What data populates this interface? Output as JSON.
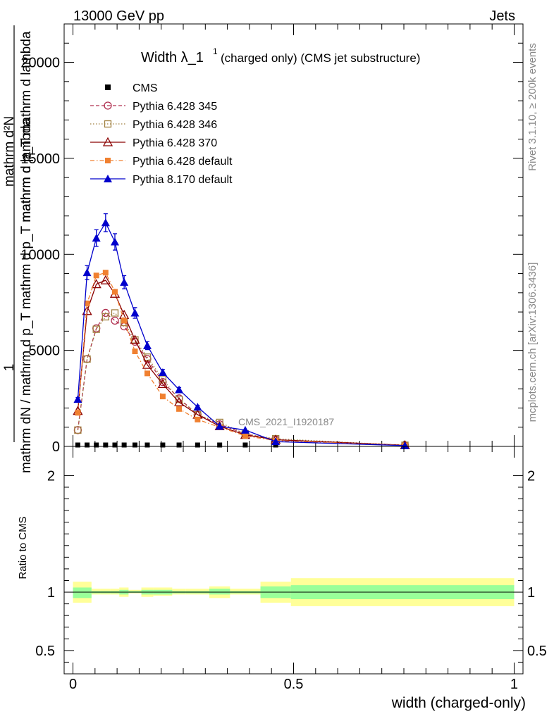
{
  "header": {
    "left": "13000 GeV pp",
    "right": "Jets"
  },
  "side_labels": {
    "rivet": "Rivet 3.1.10, ≥ 200k events",
    "mcplots": "mcplots.cern.ch [arXiv:1306.3436]"
  },
  "chart_data": [
    {
      "type": "line",
      "title": "Width λ_1¹ (charged only) (CMS jet substructure)",
      "title_main": "Width λ_1",
      "title_sup": "1",
      "title_rest": "(charged only) (CMS jet substructure)",
      "ylabel_lines": [
        "1",
        "mathrm dN / mathrm d p_T mathrm d p_T mathrm d lambda",
        "mathrm d²N"
      ],
      "ylabel_numerator": "mathrm d²N",
      "ylabel_numerator_sub": "mathrm d p_T mathrm d lambda",
      "ylabel_one": "1",
      "ylabel_denominator": "mathrm dN / mathrm d p_T mathrm d p_T mathrm d lambda",
      "watermark": "CMS_2021_I1920187",
      "xlim": [
        -0.02,
        1.02
      ],
      "ylim": [
        0,
        22000
      ],
      "yticks": [
        0,
        5000,
        10000,
        15000,
        20000
      ],
      "ytick_labels": [
        "0",
        "5000",
        "10000",
        "15000",
        "20000"
      ],
      "legend_position": "top-left",
      "series": [
        {
          "name": "CMS",
          "color": "#000000",
          "marker": "square",
          "line": "none",
          "x": [
            0.011,
            0.032,
            0.053,
            0.074,
            0.095,
            0.116,
            0.1405,
            0.1685,
            0.2035,
            0.2405,
            0.2825,
            0.3325,
            0.3905,
            0.4595,
            0.7525
          ],
          "y": [
            0,
            0,
            0,
            0,
            0,
            0,
            0,
            0,
            0,
            0,
            0,
            0,
            0,
            0,
            0
          ]
        },
        {
          "name": "Pythia 6.428 345",
          "color": "#b03050",
          "marker": "open-circle",
          "line": "dashed",
          "x": [
            0.011,
            0.032,
            0.053,
            0.074,
            0.095,
            0.116,
            0.1405,
            0.1685,
            0.2035,
            0.2405,
            0.2825,
            0.3325,
            0.3905,
            0.4595,
            0.7525
          ],
          "y": [
            850,
            4550,
            6150,
            6950,
            6550,
            6250,
            5450,
            4550,
            3350,
            2500,
            1650,
            1150,
            650,
            350,
            60
          ]
        },
        {
          "name": "Pythia 6.428 346",
          "color": "#a08040",
          "marker": "open-square",
          "line": "dotted",
          "x": [
            0.011,
            0.032,
            0.053,
            0.074,
            0.095,
            0.116,
            0.1405,
            0.1685,
            0.2035,
            0.2405,
            0.2825,
            0.3325,
            0.3905,
            0.4595,
            0.7525
          ],
          "y": [
            850,
            4550,
            6100,
            6750,
            6950,
            6450,
            5550,
            4650,
            3500,
            2450,
            1650,
            1250,
            650,
            400,
            60
          ]
        },
        {
          "name": "Pythia 6.428 370",
          "color": "#8b0000",
          "marker": "open-triangle",
          "line": "solid",
          "x": [
            0.011,
            0.032,
            0.053,
            0.074,
            0.095,
            0.116,
            0.1405,
            0.1685,
            0.2035,
            0.2405,
            0.2825,
            0.3325,
            0.3905,
            0.4595,
            0.7525
          ],
          "y": [
            1850,
            7050,
            8450,
            8650,
            7950,
            6850,
            5550,
            4250,
            3250,
            2300,
            1650,
            1050,
            600,
            350,
            60
          ]
        },
        {
          "name": "Pythia 6.428 default",
          "color": "#f08030",
          "marker": "filled-square",
          "line": "dashdot",
          "x": [
            0.011,
            0.032,
            0.053,
            0.074,
            0.095,
            0.116,
            0.1405,
            0.1685,
            0.2035,
            0.2405,
            0.2825,
            0.3325,
            0.3905,
            0.4595,
            0.7525
          ],
          "y": [
            1750,
            7450,
            8900,
            9050,
            8050,
            6550,
            4950,
            3800,
            2600,
            1950,
            1400,
            1000,
            550,
            300,
            50
          ]
        },
        {
          "name": "Pythia 8.170 default",
          "color": "#0000cc",
          "marker": "filled-triangle",
          "line": "solid",
          "x": [
            0.011,
            0.032,
            0.053,
            0.074,
            0.095,
            0.116,
            0.1405,
            0.1685,
            0.2035,
            0.2405,
            0.2825,
            0.3325,
            0.3905,
            0.4595,
            0.7525
          ],
          "y": [
            2450,
            9050,
            10850,
            11650,
            10650,
            8550,
            6950,
            5250,
            3850,
            2950,
            2050,
            1050,
            850,
            250,
            40
          ]
        }
      ]
    },
    {
      "type": "area",
      "ylabel": "Ratio to CMS",
      "xlabel": "width (charged-only)",
      "xlim": [
        -0.02,
        1.02
      ],
      "ylim": [
        0.3,
        2.25
      ],
      "xticks": [
        0,
        0.5,
        1
      ],
      "xtick_labels": [
        "0",
        "0.5",
        "1"
      ],
      "yticks": [
        0.5,
        1,
        2
      ],
      "ytick_labels": [
        "0.5",
        "1",
        "2"
      ],
      "reference_line": 1,
      "bins": [
        {
          "lo": 0.0,
          "hi": 0.042,
          "yellow": [
            0.91,
            1.09
          ],
          "green": [
            0.95,
            1.04
          ]
        },
        {
          "lo": 0.042,
          "hi": 0.063,
          "yellow": [
            0.98,
            1.03
          ],
          "green": [
            0.99,
            1.01
          ]
        },
        {
          "lo": 0.063,
          "hi": 0.084,
          "yellow": [
            0.98,
            1.03
          ],
          "green": [
            0.99,
            1.01
          ]
        },
        {
          "lo": 0.084,
          "hi": 0.105,
          "yellow": [
            0.98,
            1.03
          ],
          "green": [
            0.99,
            1.01
          ]
        },
        {
          "lo": 0.105,
          "hi": 0.126,
          "yellow": [
            0.96,
            1.04
          ],
          "green": [
            0.98,
            1.02
          ]
        },
        {
          "lo": 0.126,
          "hi": 0.155,
          "yellow": [
            0.99,
            1.02
          ],
          "green": [
            0.995,
            1.01
          ]
        },
        {
          "lo": 0.155,
          "hi": 0.182,
          "yellow": [
            0.96,
            1.04
          ],
          "green": [
            0.98,
            1.02
          ]
        },
        {
          "lo": 0.182,
          "hi": 0.225,
          "yellow": [
            0.97,
            1.04
          ],
          "green": [
            0.98,
            1.02
          ]
        },
        {
          "lo": 0.225,
          "hi": 0.256,
          "yellow": [
            0.98,
            1.03
          ],
          "green": [
            0.99,
            1.01
          ]
        },
        {
          "lo": 0.256,
          "hi": 0.309,
          "yellow": [
            0.98,
            1.03
          ],
          "green": [
            0.99,
            1.01
          ]
        },
        {
          "lo": 0.309,
          "hi": 0.356,
          "yellow": [
            0.95,
            1.05
          ],
          "green": [
            0.98,
            1.03
          ]
        },
        {
          "lo": 0.356,
          "hi": 0.425,
          "yellow": [
            0.98,
            1.03
          ],
          "green": [
            0.99,
            1.01
          ]
        },
        {
          "lo": 0.425,
          "hi": 0.494,
          "yellow": [
            0.91,
            1.09
          ],
          "green": [
            0.95,
            1.05
          ]
        },
        {
          "lo": 0.494,
          "hi": 1.0,
          "yellow": [
            0.88,
            1.12
          ],
          "green": [
            0.94,
            1.06
          ]
        }
      ]
    }
  ]
}
